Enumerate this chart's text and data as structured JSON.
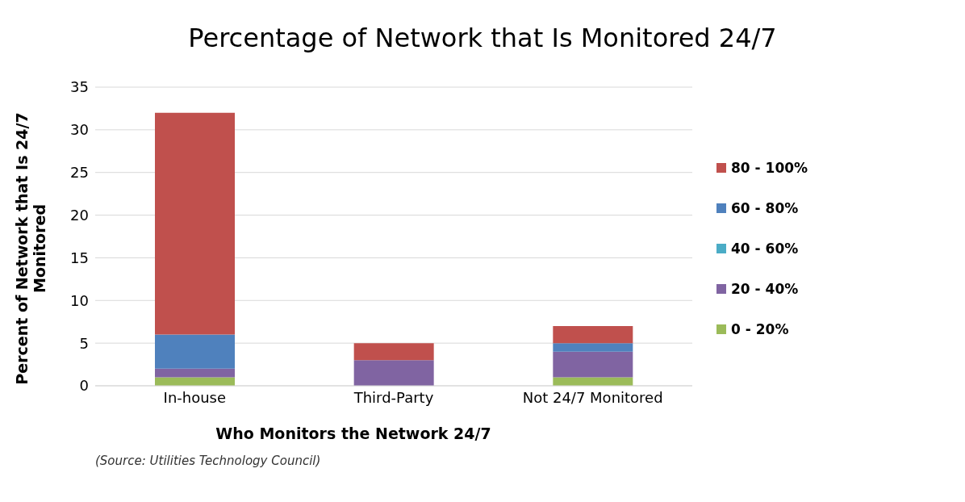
{
  "chart_data": {
    "type": "bar",
    "title": "Percentage of Network that Is Monitored 24/7",
    "xlabel": "Who Monitors the Network 24/7",
    "ylabel": "Percent of Network that Is 24/7 Monitored",
    "categories": [
      "In-house",
      "Third-Party",
      "Not 24/7 Monitored"
    ],
    "series": [
      {
        "name": "0 - 20%",
        "color": "#9bbb59",
        "values": [
          1,
          0,
          1
        ]
      },
      {
        "name": "20 - 40%",
        "color": "#8064a2",
        "values": [
          1,
          3,
          3
        ]
      },
      {
        "name": "40 - 60%",
        "color": "#4bacc6",
        "values": [
          0,
          0,
          0
        ]
      },
      {
        "name": "60 - 80%",
        "color": "#4f81bd",
        "values": [
          4,
          0,
          1
        ]
      },
      {
        "name": "80 - 100%",
        "color": "#c0504d",
        "values": [
          26,
          2,
          2
        ]
      }
    ],
    "stacked": true,
    "ylim": [
      0,
      35
    ],
    "yticks": [
      0,
      5,
      10,
      15,
      20,
      25,
      30,
      35
    ],
    "grid": "y",
    "legend": "right",
    "annotations": [
      "(Source: Utilities Technology Council)"
    ]
  }
}
